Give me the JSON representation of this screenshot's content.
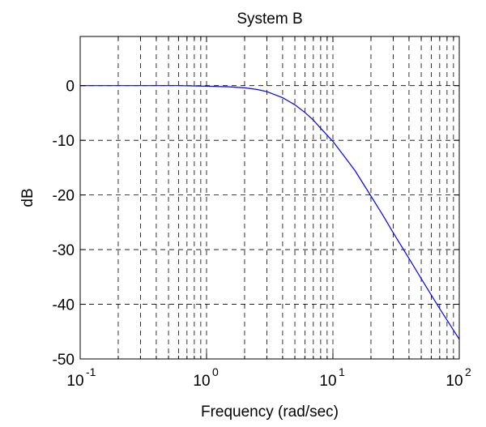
{
  "chart_data": {
    "type": "line",
    "title": "System B",
    "xlabel": "Frequency (rad/sec)",
    "ylabel": "dB",
    "x_scale": "log",
    "xlim": [
      0.1,
      100
    ],
    "ylim": [
      -50,
      9
    ],
    "grid": true,
    "x_ticks": [
      {
        "value": 0.1,
        "base": "10",
        "exp": "-1"
      },
      {
        "value": 1,
        "base": "10",
        "exp": "0"
      },
      {
        "value": 10,
        "base": "10",
        "exp": "1"
      },
      {
        "value": 100,
        "base": "10",
        "exp": "2"
      }
    ],
    "y_ticks": [
      {
        "value": 0,
        "label": "0"
      },
      {
        "value": -10,
        "label": "-10"
      },
      {
        "value": -20,
        "label": "-20"
      },
      {
        "value": -30,
        "label": "-30"
      },
      {
        "value": -40,
        "label": "-40"
      },
      {
        "value": -50,
        "label": "-50"
      }
    ],
    "series": [
      {
        "color": "#0000ff",
        "x": [
          0.1,
          0.3,
          0.6,
          1,
          1.5,
          2,
          2.5,
          3,
          4,
          5,
          6,
          7,
          8,
          10,
          12,
          15,
          20,
          25,
          30,
          40,
          50,
          60,
          70,
          80,
          100
        ],
        "y": [
          0,
          0,
          0,
          -0.1,
          -0.2,
          -0.4,
          -0.7,
          -1.1,
          -2.2,
          -3.5,
          -4.9,
          -6.3,
          -7.8,
          -10.2,
          -12.6,
          -15.6,
          -20.2,
          -23.8,
          -26.9,
          -31.6,
          -35.3,
          -38.3,
          -40.8,
          -42.9,
          -46.4
        ]
      }
    ]
  }
}
